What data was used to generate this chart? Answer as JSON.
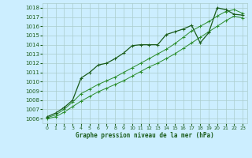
{
  "background_color": "#cceeff",
  "grid_color": "#aacccc",
  "line_color_dark": "#1a5c1a",
  "line_color_mid": "#2a8c2a",
  "xlabel": "Graphe pression niveau de la mer (hPa)",
  "xlim": [
    -0.5,
    23.5
  ],
  "ylim": [
    1005.5,
    1018.5
  ],
  "yticks": [
    1006,
    1007,
    1008,
    1009,
    1010,
    1011,
    1012,
    1013,
    1014,
    1015,
    1016,
    1017,
    1018
  ],
  "xticks": [
    0,
    1,
    2,
    3,
    4,
    5,
    6,
    7,
    8,
    9,
    10,
    11,
    12,
    13,
    14,
    15,
    16,
    17,
    18,
    19,
    20,
    21,
    22,
    23
  ],
  "series1": [
    1006.2,
    1006.6,
    1007.2,
    1008.0,
    1010.4,
    1011.0,
    1011.8,
    1012.0,
    1012.5,
    1013.1,
    1013.9,
    1014.0,
    1014.0,
    1014.0,
    1015.1,
    1015.4,
    1015.7,
    1016.1,
    1014.2,
    1015.3,
    1018.0,
    1017.8,
    1017.3,
    1017.2
  ],
  "series2": [
    1006.1,
    1006.4,
    1007.0,
    1007.8,
    1008.7,
    1009.2,
    1009.7,
    1010.1,
    1010.5,
    1011.0,
    1011.5,
    1012.0,
    1012.5,
    1013.0,
    1013.5,
    1014.1,
    1014.8,
    1015.5,
    1016.0,
    1016.5,
    1017.1,
    1017.6,
    1017.8,
    1017.4
  ],
  "series3": [
    1006.0,
    1006.2,
    1006.7,
    1007.3,
    1007.9,
    1008.4,
    1008.9,
    1009.3,
    1009.7,
    1010.1,
    1010.6,
    1011.1,
    1011.6,
    1012.0,
    1012.5,
    1013.0,
    1013.6,
    1014.2,
    1014.8,
    1015.4,
    1016.0,
    1016.6,
    1017.1,
    1016.9
  ]
}
